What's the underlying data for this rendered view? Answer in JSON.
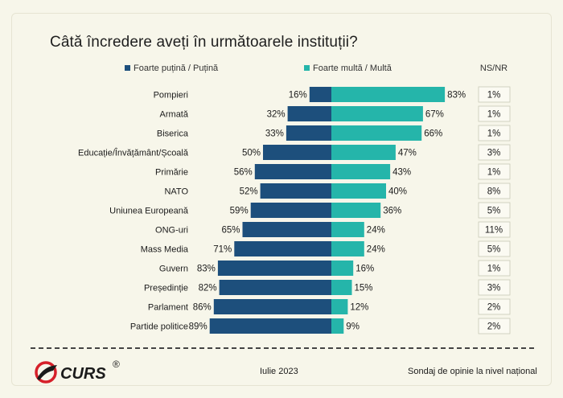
{
  "title": "Câtă încredere aveți în următoarele instituții?",
  "footer": {
    "logo_text": "CURS",
    "logo_mark": "®",
    "date": "Iulie 2023",
    "source": "Sondaj de opinie la nivel național"
  },
  "colors": {
    "low": "#1d4f7c",
    "high": "#25b5aa",
    "bg": "#f7f6ea",
    "logo_red": "#d6202a"
  },
  "chart_data": {
    "type": "bar",
    "orientation": "horizontal-diverging",
    "grid": false,
    "legend_placement": "top",
    "categories": [
      "Pompieri",
      "Armată",
      "Biserica",
      "Educație/Învățământ/Școală",
      "Primărie",
      "NATO",
      "Uniunea Europeană",
      "ONG-uri",
      "Mass Media",
      "Guvern",
      "Președinție",
      "Parlament",
      "Partide politice"
    ],
    "series": [
      {
        "name": "Foarte puțină / Puțină",
        "color": "#1d4f7c",
        "values": [
          16,
          32,
          33,
          50,
          56,
          52,
          59,
          65,
          71,
          83,
          82,
          86,
          89
        ]
      },
      {
        "name": "Foarte multă / Multă",
        "color": "#25b5aa",
        "values": [
          83,
          67,
          66,
          47,
          43,
          40,
          36,
          24,
          24,
          16,
          15,
          12,
          9
        ]
      }
    ],
    "nsnr": {
      "label": "NS/NR",
      "values": [
        1,
        1,
        1,
        3,
        1,
        8,
        5,
        11,
        5,
        1,
        3,
        2,
        2
      ]
    },
    "unit": "%"
  }
}
